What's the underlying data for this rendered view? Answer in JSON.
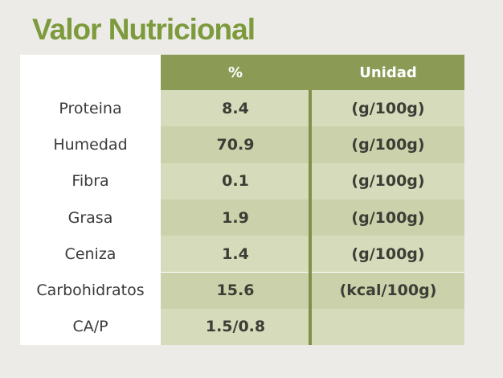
{
  "title": "Valor Nutricional",
  "table": {
    "header": [
      "%",
      "Unidad"
    ],
    "rows": [
      [
        "Proteina",
        "8.4",
        "(g/100g)"
      ],
      [
        "Humedad",
        "70.9",
        "(g/100g)"
      ],
      [
        "Fibra",
        "0.1",
        "(g/100g)"
      ],
      [
        "Grasa",
        "1.9",
        "(g/100g)"
      ],
      [
        "Ceniza",
        "1.4",
        "(g/100g)"
      ],
      [
        "Carbohidratos",
        "15.6",
        "(kcal/100g)"
      ],
      [
        "CA/P",
        "1.5/0.8"
      ]
    ]
  }
}
